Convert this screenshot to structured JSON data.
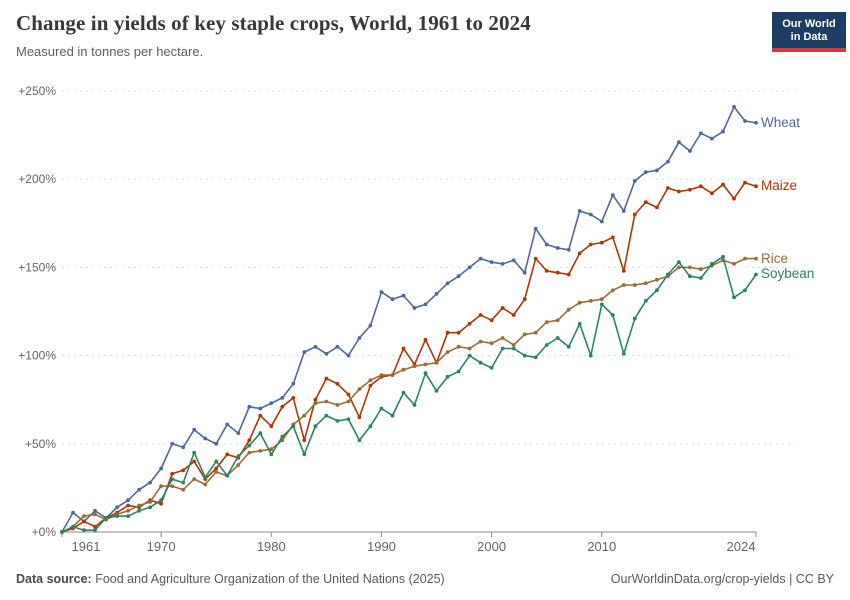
{
  "header": {
    "title": "Change in yields of key staple crops, World, 1961 to 2024",
    "subtitle": "Measured in tonnes per hectare.",
    "logo": {
      "line1": "Our World",
      "line2": "in Data",
      "bg": "#1d3d63",
      "stripe": "#d93a34"
    }
  },
  "footer": {
    "datasource_label": "Data source:",
    "datasource_text": " Food and Agriculture Organization of the United Nations (2025)",
    "credit": "OurWorldinData.org/crop-yields | CC BY"
  },
  "chart_data": {
    "type": "line",
    "title": "Change in yields of key staple crops, World, 1961 to 2024",
    "subtitle": "Measured in tonnes per hectare.",
    "unit": "%",
    "xlabel": "",
    "ylabel": "",
    "xlim": [
      1961,
      2024
    ],
    "ylim": [
      0,
      250
    ],
    "grid": "horizontal-dashed",
    "legend_position": "end-of-line-labels",
    "x_ticks": [
      1961,
      1970,
      1980,
      1990,
      2000,
      2010,
      2024
    ],
    "y_ticks": [
      {
        "value": 0,
        "label": "+0%"
      },
      {
        "value": 50,
        "label": "+50%"
      },
      {
        "value": 100,
        "label": "+100%"
      },
      {
        "value": 150,
        "label": "+150%"
      },
      {
        "value": 200,
        "label": "+200%"
      },
      {
        "value": 250,
        "label": "+250%"
      }
    ],
    "x": [
      1961,
      1962,
      1963,
      1964,
      1965,
      1966,
      1967,
      1968,
      1969,
      1970,
      1971,
      1972,
      1973,
      1974,
      1975,
      1976,
      1977,
      1978,
      1979,
      1980,
      1981,
      1982,
      1983,
      1984,
      1985,
      1986,
      1987,
      1988,
      1989,
      1990,
      1991,
      1992,
      1993,
      1994,
      1995,
      1996,
      1997,
      1998,
      1999,
      2000,
      2001,
      2002,
      2003,
      2004,
      2005,
      2006,
      2007,
      2008,
      2009,
      2010,
      2011,
      2012,
      2013,
      2014,
      2015,
      2016,
      2017,
      2018,
      2019,
      2020,
      2021,
      2022,
      2023,
      2024
    ],
    "series": [
      {
        "name": "Wheat",
        "color": "#4C6A9C",
        "values": [
          0,
          11,
          6,
          12,
          8,
          14,
          18,
          24,
          28,
          36,
          50,
          48,
          58,
          53,
          50,
          61,
          56,
          71,
          70,
          73,
          76,
          84,
          102,
          105,
          101,
          105,
          100,
          110,
          117,
          136,
          132,
          134,
          127,
          129,
          135,
          141,
          145,
          150,
          155,
          153,
          152,
          154,
          147,
          172,
          163,
          161,
          160,
          182,
          180,
          176,
          191,
          182,
          199,
          204,
          205,
          210,
          221,
          216,
          226,
          223,
          227,
          241,
          233,
          232
        ]
      },
      {
        "name": "Maize",
        "color": "#B13507",
        "values": [
          0,
          2,
          6,
          3,
          8,
          11,
          15,
          14,
          18,
          16,
          33,
          35,
          40,
          30,
          36,
          44,
          42,
          52,
          66,
          60,
          71,
          76,
          52,
          75,
          87,
          84,
          78,
          65,
          83,
          88,
          89,
          104,
          95,
          109,
          96,
          113,
          113,
          118,
          123,
          120,
          127,
          123,
          132,
          155,
          148,
          147,
          146,
          158,
          163,
          164,
          167,
          148,
          180,
          187,
          184,
          195,
          193,
          194,
          196,
          192,
          197,
          189,
          198,
          196
        ]
      },
      {
        "name": "Rice",
        "color": "#996D39",
        "values": [
          0,
          3,
          9,
          10,
          7,
          10,
          12,
          15,
          17,
          26,
          26,
          24,
          30,
          27,
          34,
          32,
          38,
          45,
          46,
          47,
          52,
          61,
          66,
          73,
          74,
          72,
          74,
          81,
          86,
          89,
          89,
          92,
          94,
          95,
          96,
          102,
          105,
          104,
          108,
          107,
          110,
          106,
          112,
          113,
          119,
          120,
          126,
          130,
          131,
          132,
          137,
          140,
          140,
          141,
          143,
          145,
          150,
          150,
          149,
          151,
          154,
          152,
          155,
          155
        ]
      },
      {
        "name": "Soybean",
        "color": "#2C8465",
        "values": [
          0,
          3,
          1,
          1,
          8,
          9,
          9,
          12,
          14,
          18,
          30,
          28,
          45,
          31,
          40,
          32,
          43,
          49,
          56,
          44,
          54,
          60,
          44,
          60,
          66,
          63,
          64,
          52,
          60,
          70,
          66,
          79,
          72,
          90,
          80,
          88,
          91,
          100,
          96,
          93,
          104,
          104,
          100,
          99,
          106,
          110,
          105,
          118,
          100,
          129,
          123,
          101,
          121,
          131,
          137,
          146,
          153,
          145,
          144,
          152,
          156,
          133,
          137,
          146
        ]
      }
    ]
  }
}
